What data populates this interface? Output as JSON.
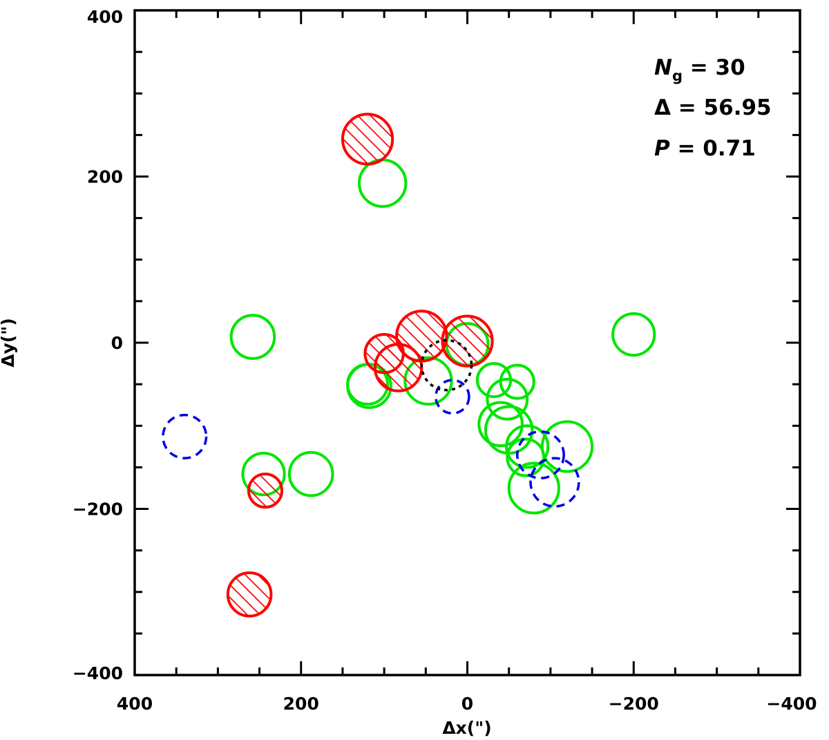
{
  "chart_data": {
    "type": "scatter",
    "title": "",
    "xlabel": "Δx(\")",
    "ylabel": "Δy(\")",
    "xlim": [
      400,
      -400
    ],
    "ylim": [
      -400,
      400
    ],
    "x_reversed": true,
    "grid": false,
    "x_ticks": [
      400,
      200,
      0,
      -200,
      -400
    ],
    "x_tick_labels": [
      "400",
      "200",
      "0",
      "−200",
      "−400"
    ],
    "y_ticks": [
      -400,
      -200,
      0,
      200,
      400
    ],
    "y_tick_labels": [
      "−400",
      "−200",
      "0",
      "200",
      "400"
    ],
    "annotations": [
      {
        "symbol": "N",
        "subscript": "g",
        "eq": " = ",
        "value": "30"
      },
      {
        "symbol": "Δ",
        "subscript": "",
        "eq": " = ",
        "value": "56.95"
      },
      {
        "symbol": "P",
        "subscript": "",
        "eq": " = ",
        "value": "0.71"
      }
    ],
    "annotation_position": "top-right",
    "colors": {
      "hatched": "#ff0000",
      "open": "#00e600",
      "dashed": "#0000e6",
      "reference": "#000000"
    },
    "series": [
      {
        "style": "hatched",
        "points": [
          {
            "x": 120,
            "y": 245,
            "r": 30
          },
          {
            "x": 55,
            "y": 8,
            "r": 30
          },
          {
            "x": 0,
            "y": 2,
            "r": 30
          },
          {
            "x": 100,
            "y": -13,
            "r": 23
          },
          {
            "x": 83,
            "y": -30,
            "r": 28
          },
          {
            "x": 243,
            "y": -178,
            "r": 20
          },
          {
            "x": 262,
            "y": -303,
            "r": 26
          }
        ]
      },
      {
        "style": "open",
        "points": [
          {
            "x": 102,
            "y": 192,
            "r": 28
          },
          {
            "x": 258,
            "y": 7,
            "r": 26
          },
          {
            "x": -200,
            "y": 10,
            "r": 25
          },
          {
            "x": 0,
            "y": -2,
            "r": 25
          },
          {
            "x": 120,
            "y": -50,
            "r": 24
          },
          {
            "x": 118,
            "y": -52,
            "r": 26
          },
          {
            "x": 47,
            "y": -46,
            "r": 28
          },
          {
            "x": -32,
            "y": -45,
            "r": 20
          },
          {
            "x": -60,
            "y": -47,
            "r": 20
          },
          {
            "x": -48,
            "y": -68,
            "r": 24
          },
          {
            "x": -40,
            "y": -98,
            "r": 26
          },
          {
            "x": -50,
            "y": -105,
            "r": 28
          },
          {
            "x": -72,
            "y": -125,
            "r": 25
          },
          {
            "x": -120,
            "y": -125,
            "r": 30
          },
          {
            "x": -70,
            "y": -138,
            "r": 22
          },
          {
            "x": -80,
            "y": -175,
            "r": 30
          },
          {
            "x": 245,
            "y": -158,
            "r": 25
          },
          {
            "x": 188,
            "y": -158,
            "r": 26
          }
        ]
      },
      {
        "style": "dashed",
        "points": [
          {
            "x": 18,
            "y": -65,
            "r": 20
          },
          {
            "x": 340,
            "y": -113,
            "r": 26
          },
          {
            "x": -88,
            "y": -135,
            "r": 28
          },
          {
            "x": -105,
            "y": -168,
            "r": 29
          }
        ]
      },
      {
        "style": "reference",
        "points": [
          {
            "x": 25,
            "y": -27,
            "r": 30
          }
        ]
      }
    ]
  }
}
